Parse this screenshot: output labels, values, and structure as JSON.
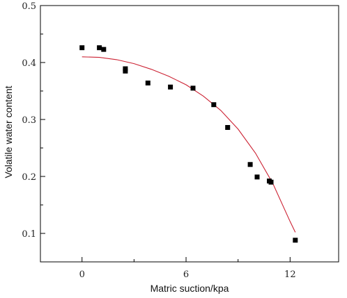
{
  "chart_data": {
    "type": "scatter",
    "title": "",
    "xlabel": "Matric suction/kpa",
    "ylabel": "Volatile water content",
    "xlim": [
      -2.4,
      14.8
    ],
    "ylim": [
      0.05,
      0.5
    ],
    "x_ticks": [
      0,
      6,
      12
    ],
    "x_tick_labels": [
      "0",
      "6",
      "12"
    ],
    "y_ticks": [
      0.1,
      0.2,
      0.3,
      0.4,
      0.5
    ],
    "y_tick_labels": [
      "0.1",
      "0.2",
      "0.3",
      "0.4",
      "0.5"
    ],
    "grid": false,
    "legend": "none",
    "series": [
      {
        "type": "scatter",
        "marker": "square",
        "color": "#000000",
        "x": [
          0.0,
          1.0,
          1.25,
          2.5,
          2.5,
          3.8,
          5.1,
          6.4,
          7.6,
          8.4,
          9.7,
          10.1,
          10.8,
          10.9,
          12.3
        ],
        "y": [
          0.426,
          0.426,
          0.423,
          0.389,
          0.385,
          0.364,
          0.357,
          0.355,
          0.326,
          0.286,
          0.221,
          0.199,
          0.192,
          0.19,
          0.088
        ]
      },
      {
        "type": "line",
        "color": "#cc2233",
        "x": [
          0.0,
          1.0,
          2.0,
          3.0,
          4.0,
          5.0,
          6.0,
          7.0,
          8.0,
          9.0,
          10.0,
          11.0,
          12.0,
          12.3
        ],
        "y": [
          0.41,
          0.409,
          0.405,
          0.398,
          0.388,
          0.376,
          0.361,
          0.341,
          0.316,
          0.283,
          0.241,
          0.188,
          0.121,
          0.102
        ]
      }
    ]
  }
}
